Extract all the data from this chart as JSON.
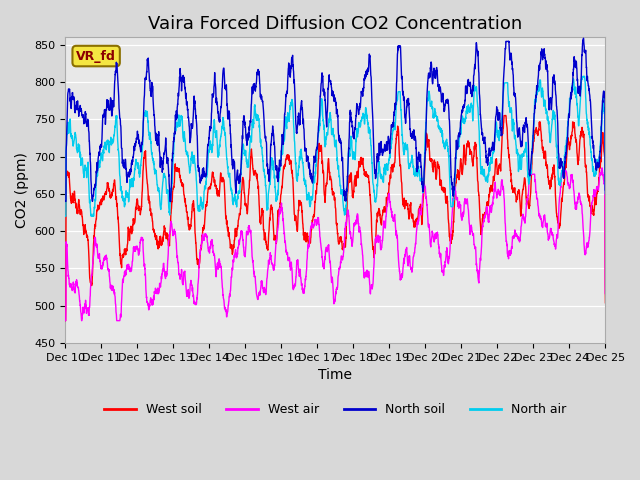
{
  "title": "Vaira Forced Diffusion CO2 Concentration",
  "xlabel": "Time",
  "ylabel": "CO2 (ppm)",
  "ylim": [
    450,
    860
  ],
  "yticks": [
    450,
    500,
    550,
    600,
    650,
    700,
    750,
    800,
    850
  ],
  "colors": {
    "west_soil": "#ff0000",
    "west_air": "#ff00ff",
    "north_soil": "#0000cc",
    "north_air": "#00ccee"
  },
  "legend_labels": [
    "West soil",
    "West air",
    "North soil",
    "North air"
  ],
  "fig_bg": "#d8d8d8",
  "plot_bg": "#e8e8e8",
  "annotation_text": "VR_fd",
  "x_tick_labels": [
    "Dec 10",
    "Dec 11",
    "Dec 12",
    "Dec 13",
    "Dec 14",
    "Dec 15",
    "Dec 16",
    "Dec 17",
    "Dec 18",
    "Dec 19",
    "Dec 20",
    "Dec 21",
    "Dec 22",
    "Dec 23",
    "Dec 24",
    "Dec 25"
  ],
  "title_fontsize": 13,
  "axis_label_fontsize": 10,
  "tick_fontsize": 8,
  "linewidth": 1.0
}
